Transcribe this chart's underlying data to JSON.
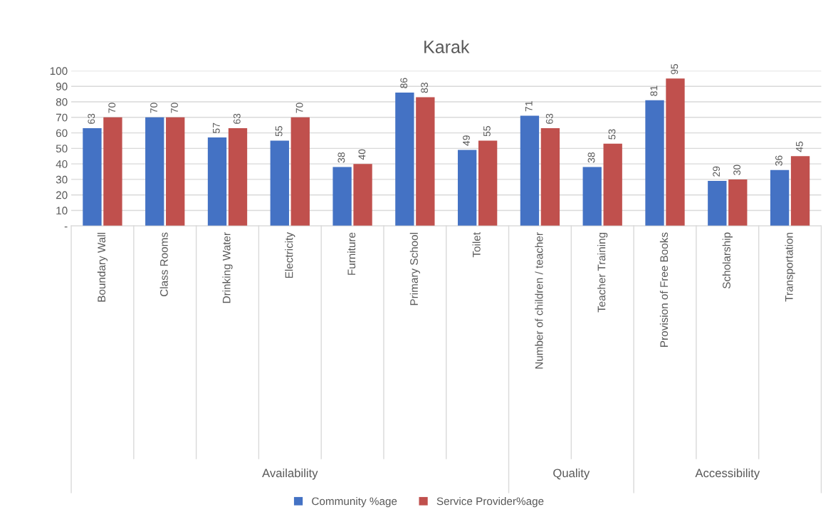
{
  "chart_data": {
    "type": "bar",
    "title": "Karak",
    "categories": [
      "Boundary Wall",
      "Class Rooms",
      "Drinking Water",
      "Electricity",
      "Furniture",
      "Primary School",
      "Toilet",
      "Number of children / teacher",
      "Teacher Training",
      "Provision of Free Books",
      "Scholarship",
      "Transportation"
    ],
    "series": [
      {
        "name": "Community %age",
        "color": "#4472c4",
        "values": [
          63,
          70,
          57,
          55,
          38,
          86,
          49,
          71,
          38,
          81,
          29,
          36
        ]
      },
      {
        "name": "Service Provider%age",
        "color": "#c0504d",
        "values": [
          70,
          70,
          63,
          70,
          40,
          83,
          55,
          63,
          53,
          95,
          30,
          45
        ]
      }
    ],
    "annotations": [
      "Availability",
      "Quality",
      "Accessibility"
    ],
    "ylim": [
      0,
      100
    ],
    "yticks": [
      {
        "value": 0,
        "label": "-"
      },
      10,
      20,
      30,
      40,
      50,
      60,
      70,
      80,
      90,
      100
    ],
    "grid": "y",
    "legend": "bottom",
    "data_labels": true
  }
}
